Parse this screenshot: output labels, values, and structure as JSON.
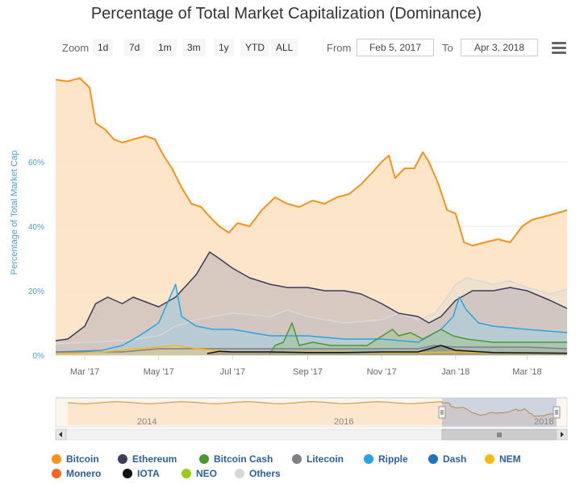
{
  "title": "Percentage of Total Market Capitalization (Dominance)",
  "zoom": {
    "label": "Zoom",
    "buttons": [
      "1d",
      "7d",
      "1m",
      "3m",
      "1y",
      "YTD",
      "ALL"
    ]
  },
  "range": {
    "from_label": "From",
    "from_value": "Feb 5, 2017",
    "to_label": "To",
    "to_value": "Apr 3, 2018"
  },
  "colors": {
    "Bitcoin": "#f7931a",
    "Ethereum": "#3c3c5d",
    "Bitcoin Cash": "#4a9930",
    "Litecoin": "#7f7f86",
    "Ripple": "#2aa4e0",
    "Dash": "#1c75bc",
    "NEM": "#f9ba16",
    "Monero": "#f26822",
    "IOTA": "#111111",
    "NEO": "#99cc11",
    "Others": "#d8d8d8"
  },
  "chart_data": {
    "type": "area",
    "title": "Percentage of Total Market Capitalization (Dominance)",
    "ylabel": "Percentage of Total Market Cap",
    "ylim": [
      0,
      86
    ],
    "y_ticks": [
      "0%",
      "20%",
      "40%",
      "60%"
    ],
    "y_tick_values": [
      0,
      20,
      40,
      60
    ],
    "x_ticks": [
      "Mar '17",
      "May '17",
      "Jul '17",
      "Sep '17",
      "Nov '17",
      "Jan '18",
      "Mar '18"
    ],
    "x_tick_values": [
      "2017-03-01",
      "2017-05-01",
      "2017-07-01",
      "2017-09-01",
      "2017-11-01",
      "2018-01-01",
      "2018-03-01"
    ],
    "xlim": [
      "2017-02-05",
      "2018-04-03"
    ],
    "legend_position": "bottom",
    "grid": true,
    "series": [
      {
        "name": "Bitcoin",
        "points": [
          [
            "2017-02-05",
            85.5
          ],
          [
            "2017-02-15",
            85.0
          ],
          [
            "2017-02-25",
            86.0
          ],
          [
            "2017-03-05",
            83
          ],
          [
            "2017-03-10",
            72
          ],
          [
            "2017-03-18",
            70
          ],
          [
            "2017-03-25",
            67
          ],
          [
            "2017-04-01",
            66
          ],
          [
            "2017-04-10",
            67
          ],
          [
            "2017-04-20",
            68
          ],
          [
            "2017-04-28",
            67
          ],
          [
            "2017-05-05",
            62
          ],
          [
            "2017-05-12",
            58
          ],
          [
            "2017-05-20",
            52
          ],
          [
            "2017-05-28",
            47
          ],
          [
            "2017-06-05",
            46
          ],
          [
            "2017-06-12",
            43
          ],
          [
            "2017-06-20",
            40
          ],
          [
            "2017-06-28",
            38
          ],
          [
            "2017-07-05",
            41
          ],
          [
            "2017-07-15",
            40
          ],
          [
            "2017-07-25",
            45
          ],
          [
            "2017-08-05",
            49
          ],
          [
            "2017-08-15",
            47
          ],
          [
            "2017-08-25",
            46
          ],
          [
            "2017-09-05",
            48
          ],
          [
            "2017-09-15",
            47
          ],
          [
            "2017-09-25",
            49
          ],
          [
            "2017-10-05",
            50
          ],
          [
            "2017-10-15",
            53
          ],
          [
            "2017-10-25",
            57
          ],
          [
            "2017-11-01",
            60
          ],
          [
            "2017-11-07",
            62
          ],
          [
            "2017-11-12",
            55
          ],
          [
            "2017-11-20",
            58
          ],
          [
            "2017-11-28",
            58
          ],
          [
            "2017-12-05",
            63
          ],
          [
            "2017-12-10",
            60
          ],
          [
            "2017-12-18",
            53
          ],
          [
            "2017-12-25",
            45
          ],
          [
            "2018-01-01",
            44
          ],
          [
            "2018-01-08",
            35
          ],
          [
            "2018-01-15",
            34
          ],
          [
            "2018-01-25",
            35
          ],
          [
            "2018-02-05",
            36
          ],
          [
            "2018-02-15",
            35
          ],
          [
            "2018-02-25",
            40
          ],
          [
            "2018-03-05",
            42
          ],
          [
            "2018-03-15",
            43
          ],
          [
            "2018-03-25",
            44
          ],
          [
            "2018-04-03",
            45
          ]
        ]
      },
      {
        "name": "Others",
        "points": [
          [
            "2017-02-05",
            3.5
          ],
          [
            "2017-03-01",
            4
          ],
          [
            "2017-04-01",
            4.5
          ],
          [
            "2017-05-01",
            6
          ],
          [
            "2017-05-15",
            9
          ],
          [
            "2017-06-01",
            11
          ],
          [
            "2017-06-15",
            12
          ],
          [
            "2017-07-01",
            13
          ],
          [
            "2017-08-01",
            12
          ],
          [
            "2017-08-15",
            14
          ],
          [
            "2017-09-01",
            12
          ],
          [
            "2017-10-01",
            10
          ],
          [
            "2017-11-01",
            11
          ],
          [
            "2017-11-15",
            13
          ],
          [
            "2017-12-01",
            11
          ],
          [
            "2017-12-15",
            13
          ],
          [
            "2017-12-25",
            18
          ],
          [
            "2018-01-01",
            22
          ],
          [
            "2018-01-10",
            24
          ],
          [
            "2018-02-01",
            22
          ],
          [
            "2018-02-15",
            23
          ],
          [
            "2018-03-01",
            21
          ],
          [
            "2018-03-20",
            19
          ],
          [
            "2018-04-03",
            20.5
          ]
        ]
      },
      {
        "name": "Ethereum",
        "points": [
          [
            "2017-02-05",
            4.5
          ],
          [
            "2017-02-15",
            5
          ],
          [
            "2017-03-01",
            9
          ],
          [
            "2017-03-10",
            16
          ],
          [
            "2017-03-20",
            18
          ],
          [
            "2017-04-01",
            16
          ],
          [
            "2017-04-10",
            18
          ],
          [
            "2017-05-01",
            15
          ],
          [
            "2017-05-15",
            18
          ],
          [
            "2017-06-01",
            25
          ],
          [
            "2017-06-12",
            32
          ],
          [
            "2017-06-20",
            30
          ],
          [
            "2017-07-01",
            27
          ],
          [
            "2017-07-15",
            24
          ],
          [
            "2017-08-01",
            22
          ],
          [
            "2017-08-15",
            21
          ],
          [
            "2017-09-01",
            21
          ],
          [
            "2017-09-15",
            20
          ],
          [
            "2017-10-01",
            20
          ],
          [
            "2017-10-15",
            19
          ],
          [
            "2017-11-01",
            16
          ],
          [
            "2017-11-15",
            13
          ],
          [
            "2017-12-01",
            12
          ],
          [
            "2017-12-10",
            10
          ],
          [
            "2017-12-20",
            12
          ],
          [
            "2018-01-01",
            17
          ],
          [
            "2018-01-15",
            20
          ],
          [
            "2018-02-01",
            20
          ],
          [
            "2018-02-15",
            21
          ],
          [
            "2018-03-01",
            20
          ],
          [
            "2018-03-20",
            17
          ],
          [
            "2018-04-03",
            14.5
          ]
        ]
      },
      {
        "name": "Ripple",
        "points": [
          [
            "2017-02-05",
            1
          ],
          [
            "2017-03-15",
            1.5
          ],
          [
            "2017-04-01",
            3
          ],
          [
            "2017-04-15",
            6
          ],
          [
            "2017-05-01",
            10
          ],
          [
            "2017-05-15",
            22
          ],
          [
            "2017-05-20",
            12
          ],
          [
            "2017-06-01",
            9
          ],
          [
            "2017-06-15",
            8
          ],
          [
            "2017-07-01",
            8
          ],
          [
            "2017-08-01",
            6
          ],
          [
            "2017-09-01",
            6
          ],
          [
            "2017-10-01",
            5
          ],
          [
            "2017-11-01",
            5
          ],
          [
            "2017-12-01",
            4
          ],
          [
            "2017-12-20",
            8
          ],
          [
            "2017-12-30",
            12
          ],
          [
            "2018-01-04",
            18
          ],
          [
            "2018-01-10",
            14
          ],
          [
            "2018-01-20",
            10
          ],
          [
            "2018-02-01",
            9
          ],
          [
            "2018-03-01",
            8
          ],
          [
            "2018-04-03",
            7
          ]
        ]
      },
      {
        "name": "Bitcoin Cash",
        "points": [
          [
            "2017-08-01",
            0.5
          ],
          [
            "2017-08-05",
            3
          ],
          [
            "2017-08-12",
            4
          ],
          [
            "2017-08-19",
            10
          ],
          [
            "2017-08-25",
            3
          ],
          [
            "2017-09-05",
            4
          ],
          [
            "2017-09-20",
            3
          ],
          [
            "2017-10-01",
            3
          ],
          [
            "2017-10-20",
            3
          ],
          [
            "2017-11-10",
            8
          ],
          [
            "2017-11-15",
            6
          ],
          [
            "2017-11-25",
            7
          ],
          [
            "2017-12-05",
            5
          ],
          [
            "2017-12-20",
            8
          ],
          [
            "2017-12-30",
            6
          ],
          [
            "2018-01-10",
            5
          ],
          [
            "2018-02-01",
            4
          ],
          [
            "2018-03-01",
            4
          ],
          [
            "2018-04-03",
            4
          ]
        ]
      },
      {
        "name": "Litecoin",
        "points": [
          [
            "2017-02-05",
            1
          ],
          [
            "2017-04-01",
            1
          ],
          [
            "2017-05-01",
            2
          ],
          [
            "2017-06-01",
            2
          ],
          [
            "2017-07-01",
            2
          ],
          [
            "2017-08-01",
            2
          ],
          [
            "2017-09-01",
            2
          ],
          [
            "2017-10-01",
            2
          ],
          [
            "2017-11-01",
            2
          ],
          [
            "2017-12-01",
            2
          ],
          [
            "2017-12-15",
            3
          ],
          [
            "2018-01-01",
            2.5
          ],
          [
            "2018-02-01",
            2.5
          ],
          [
            "2018-03-01",
            2.5
          ],
          [
            "2018-04-03",
            2
          ]
        ]
      },
      {
        "name": "NEM",
        "points": [
          [
            "2017-02-05",
            0.3
          ],
          [
            "2017-03-15",
            1
          ],
          [
            "2017-04-15",
            2
          ],
          [
            "2017-05-15",
            3
          ],
          [
            "2017-06-01",
            2
          ],
          [
            "2017-07-01",
            1
          ],
          [
            "2017-08-01",
            1
          ],
          [
            "2017-09-01",
            1
          ],
          [
            "2017-10-01",
            1
          ],
          [
            "2017-11-01",
            0.8
          ],
          [
            "2017-12-01",
            0.8
          ],
          [
            "2018-01-01",
            1
          ],
          [
            "2018-02-01",
            0.8
          ],
          [
            "2018-04-03",
            0.6
          ]
        ]
      },
      {
        "name": "IOTA",
        "points": [
          [
            "2017-06-10",
            0.5
          ],
          [
            "2017-06-20",
            1.2
          ],
          [
            "2017-07-01",
            1
          ],
          [
            "2017-08-01",
            1
          ],
          [
            "2017-09-01",
            0.8
          ],
          [
            "2017-10-01",
            0.8
          ],
          [
            "2017-11-01",
            1
          ],
          [
            "2017-12-01",
            1
          ],
          [
            "2017-12-20",
            3
          ],
          [
            "2018-01-01",
            1.5
          ],
          [
            "2018-02-01",
            0.8
          ],
          [
            "2018-04-03",
            0.6
          ]
        ]
      }
    ]
  },
  "navigator": {
    "labels": [
      "2014",
      "2016",
      "2018"
    ]
  },
  "legend": [
    {
      "name": "Bitcoin"
    },
    {
      "name": "Ethereum"
    },
    {
      "name": "Bitcoin Cash"
    },
    {
      "name": "Litecoin"
    },
    {
      "name": "Ripple"
    },
    {
      "name": "Dash"
    },
    {
      "name": "NEM"
    },
    {
      "name": "Monero"
    },
    {
      "name": "IOTA"
    },
    {
      "name": "NEO"
    },
    {
      "name": "Others"
    }
  ]
}
